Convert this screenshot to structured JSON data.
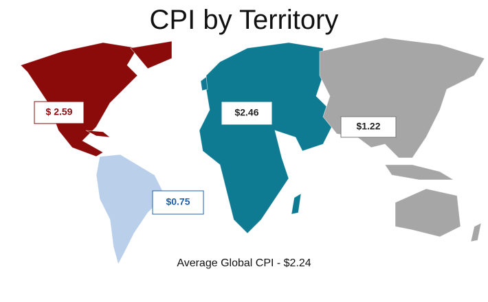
{
  "title": "CPI by Territory",
  "regions": [
    {
      "label": "$ 2.59",
      "color": "#8b0b0b",
      "label_color": "#8b0b0b"
    },
    {
      "label": "$2.46",
      "color": "#0e7b93",
      "label_color": "#222222"
    },
    {
      "label": "$1.22",
      "color": "#a6a6a6",
      "label_color": "#222222"
    },
    {
      "label": "$0.75",
      "color": "#bad0ea",
      "label_color": "#1f5fa8"
    }
  ],
  "footer": "Average Global CPI - $2.24"
}
